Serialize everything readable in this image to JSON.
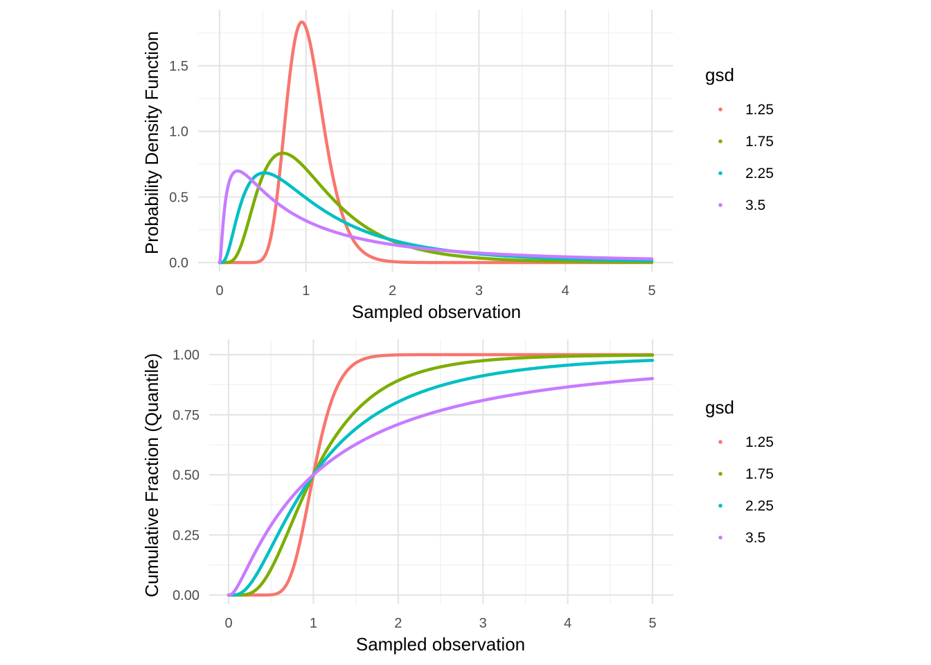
{
  "colors": {
    "1.25": "#F8766D",
    "1.75": "#7CAE00",
    "2.25": "#00BFC4",
    "3.5": "#C77CFF"
  },
  "chart_data": [
    {
      "type": "line",
      "title": "",
      "xlabel": "Sampled observation",
      "ylabel": "Probability Density Function",
      "xlim": [
        0,
        5
      ],
      "ylim": [
        0,
        1.85
      ],
      "x_ticks": [
        0,
        1,
        2,
        3,
        4,
        5
      ],
      "x_tick_labels": [
        "0",
        "1",
        "2",
        "3",
        "4",
        "5"
      ],
      "y_ticks": [
        0,
        0.5,
        1.0,
        1.5
      ],
      "y_tick_labels": [
        "0.0",
        "0.5",
        "1.0",
        "1.5"
      ],
      "grid": true,
      "legend": {
        "title": "gsd",
        "position": "right",
        "entries": [
          "1.25",
          "1.75",
          "2.25",
          "3.5"
        ]
      },
      "function": "lognormal_pdf",
      "gmean": 1,
      "series": [
        {
          "name": "1.25",
          "gsd": 1.25
        },
        {
          "name": "1.75",
          "gsd": 1.75
        },
        {
          "name": "2.25",
          "gsd": 2.25
        },
        {
          "name": "3.5",
          "gsd": 3.5
        }
      ]
    },
    {
      "type": "line",
      "title": "",
      "xlabel": "Sampled observation",
      "ylabel": "Cumulative Fraction (Quantile)",
      "xlim": [
        0,
        5
      ],
      "ylim": [
        0,
        1
      ],
      "x_ticks": [
        0,
        1,
        2,
        3,
        4,
        5
      ],
      "x_tick_labels": [
        "0",
        "1",
        "2",
        "3",
        "4",
        "5"
      ],
      "y_ticks": [
        0,
        0.25,
        0.5,
        0.75,
        1.0
      ],
      "y_tick_labels": [
        "0.00",
        "0.25",
        "0.50",
        "0.75",
        "1.00"
      ],
      "grid": true,
      "legend": {
        "title": "gsd",
        "position": "right",
        "entries": [
          "1.25",
          "1.75",
          "2.25",
          "3.5"
        ]
      },
      "function": "lognormal_cdf",
      "gmean": 1,
      "series": [
        {
          "name": "1.25",
          "gsd": 1.25
        },
        {
          "name": "1.75",
          "gsd": 1.75
        },
        {
          "name": "2.25",
          "gsd": 2.25
        },
        {
          "name": "3.5",
          "gsd": 3.5
        }
      ]
    }
  ]
}
